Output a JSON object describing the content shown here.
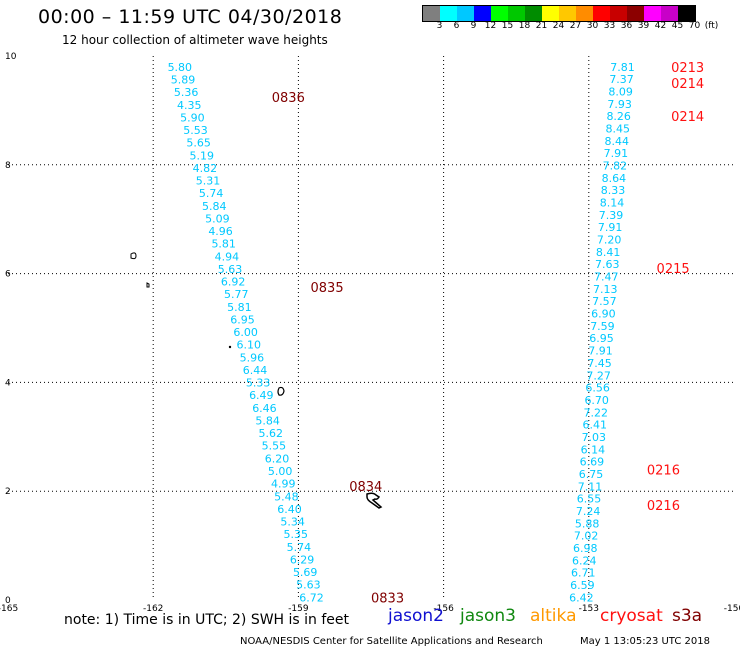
{
  "header": {
    "title": "00:00  –  11:59 UTC 04/30/2018",
    "subtitle": "12 hour collection of altimeter wave heights"
  },
  "colorbar": {
    "colors": [
      "#7f7f7f",
      "#00ffff",
      "#00c8ff",
      "#0000ff",
      "#00ff00",
      "#00c800",
      "#008c00",
      "#ffff00",
      "#ffc800",
      "#ff8c00",
      "#ff0000",
      "#c80000",
      "#8c0000",
      "#ff00ff",
      "#c800c8",
      "#000000"
    ],
    "labels": [
      "3",
      "6",
      "9",
      "12",
      "15",
      "18",
      "21",
      "24",
      "27",
      "30",
      "33",
      "36",
      "39",
      "42",
      "45",
      "70",
      "(ft)"
    ]
  },
  "axes": {
    "x_ticks": [
      "-165",
      "-162",
      "-159",
      "-156",
      "-153",
      "-150"
    ],
    "x_values": [
      -165,
      -162,
      -159,
      -156,
      -153,
      -150
    ],
    "y_ticks": [
      "0",
      "2",
      "4",
      "6",
      "8",
      "10"
    ],
    "y_values": [
      0,
      2,
      4,
      6,
      8,
      10
    ],
    "xlim": [
      -165,
      -150
    ],
    "ylim": [
      0,
      10
    ]
  },
  "track1": {
    "lon_start": -161.45,
    "lon_end": -158.73,
    "lat_start": 9.8,
    "lat_end": 0.05,
    "values": [
      "5.80",
      "5.89",
      "5.36",
      "4.35",
      "5.90",
      "5.53",
      "5.65",
      "5.19",
      "4.82",
      "5.31",
      "5.74",
      "5.84",
      "5.09",
      "4.96",
      "5.81",
      "4.94",
      "5.63",
      "6.92",
      "5.77",
      "5.81",
      "6.95",
      "6.00",
      "6.10",
      "5.96",
      "6.44",
      "5.33",
      "6.49",
      "6.46",
      "5.84",
      "5.62",
      "5.55",
      "6.20",
      "5.00",
      "4.99",
      "5.48",
      "6.40",
      "5.34",
      "5.35",
      "5.74",
      "6.29",
      "5.69",
      "5.63",
      "6.72"
    ]
  },
  "track2": {
    "lon_start": -152.05,
    "lon_end": -152.9,
    "lat_start": 9.8,
    "lat_end": 0.05,
    "values": [
      "7.81",
      "7.37",
      "8.09",
      "7.93",
      "8.26",
      "8.45",
      "8.44",
      "7.91",
      "7.82",
      "8.64",
      "8.33",
      "8.14",
      "7.39",
      "7.91",
      "7.20",
      "8.41",
      "7.63",
      "7.47",
      "7.13",
      "7.57",
      "6.90",
      "7.59",
      "6.95",
      "7.91",
      "7.45",
      "7.27",
      "6.56",
      "6.70",
      "7.22",
      "6.41",
      "7.03",
      "6.14",
      "6.69",
      "6.75",
      "7.11",
      "6.55",
      "7.24",
      "5.88",
      "7.02",
      "6.98",
      "6.24",
      "6.71",
      "6.59",
      "6.42"
    ]
  },
  "times_track1": [
    {
      "label": "0836",
      "lon": -159.55,
      "lat": 9.25
    },
    {
      "label": "0835",
      "lon": -158.75,
      "lat": 5.75
    },
    {
      "label": "0834",
      "lon": -157.95,
      "lat": 2.1
    },
    {
      "label": "0833",
      "lon": -157.5,
      "lat": 0.05
    }
  ],
  "times_track2": [
    {
      "label": "0213",
      "lon": -151.3,
      "lat": 9.8
    },
    {
      "label": "0214",
      "lon": -151.3,
      "lat": 9.5
    },
    {
      "label": "0214",
      "lon": -151.3,
      "lat": 8.9
    },
    {
      "label": "0215",
      "lon": -151.6,
      "lat": 6.1
    },
    {
      "label": "0216",
      "lon": -151.8,
      "lat": 2.4
    },
    {
      "label": "0216",
      "lon": -151.8,
      "lat": 1.75
    }
  ],
  "note": "note:  1) Time is in UTC;  2) SWH is in feet",
  "legend": [
    {
      "name": "jason2",
      "color": "#1010d0"
    },
    {
      "name": "jason3",
      "color": "#108810"
    },
    {
      "name": "altika",
      "color": "#ff9900"
    },
    {
      "name": "cryosat",
      "color": "#ff1010"
    },
    {
      "name": "s3a",
      "color": "#800000"
    }
  ],
  "footer": {
    "credit": "NOAA/NESDIS Center for Satellite Applications and Research",
    "timestamp": "May  1 13:05:23 UTC 2018"
  },
  "colors": {
    "track_value": "#00c8ff",
    "time_s3a": "#800000",
    "time_cryosat": "#ff1010"
  }
}
